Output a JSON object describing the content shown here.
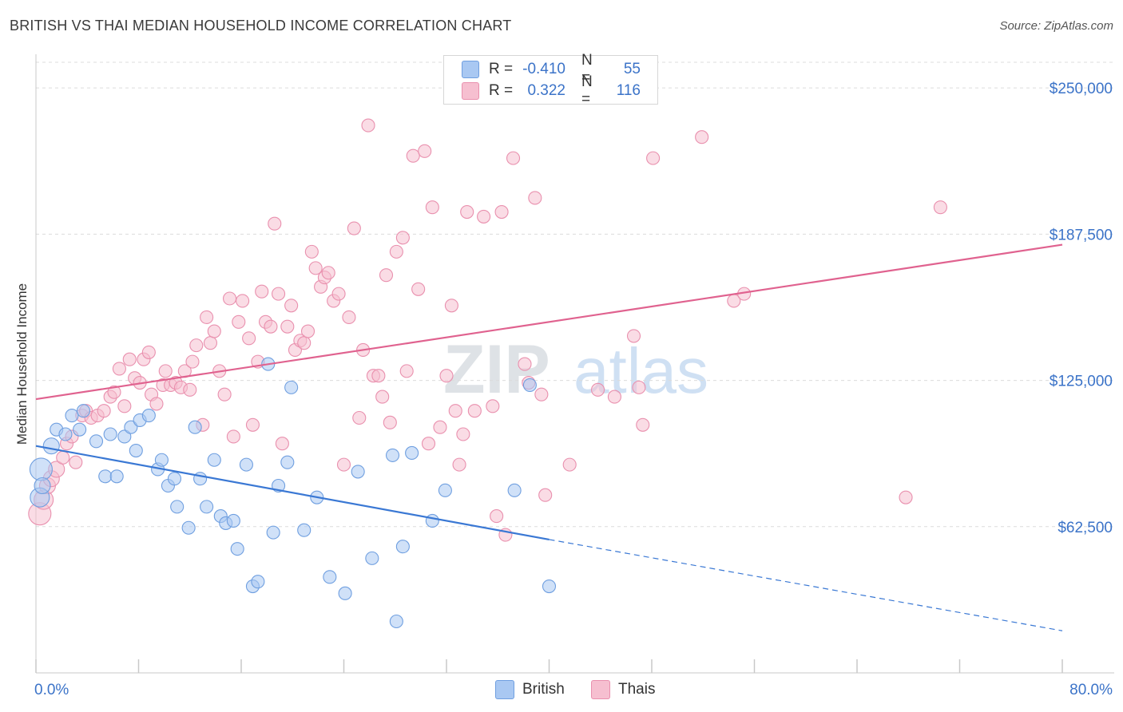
{
  "title": "BRITISH VS THAI MEDIAN HOUSEHOLD INCOME CORRELATION CHART",
  "source": "Source: ZipAtlas.com",
  "watermark": {
    "zip": "ZIP",
    "atlas": "atlas"
  },
  "legend": {
    "r_label": "R =",
    "n_label": "N =",
    "rows": [
      {
        "series": "British",
        "r": "-0.410",
        "n": "55",
        "color": "#a9c8f2",
        "edge": "#6f9fe0"
      },
      {
        "series": "Thais",
        "r": "0.322",
        "n": "116",
        "color": "#f6bfd0",
        "edge": "#e990ae"
      }
    ]
  },
  "bottom_legend": [
    "British",
    "Thais"
  ],
  "chart_data": {
    "type": "scatter",
    "title": "BRITISH VS THAI MEDIAN HOUSEHOLD INCOME CORRELATION CHART",
    "xlabel": "",
    "ylabel": "Median Household Income",
    "xlim": [
      0,
      80
    ],
    "ylim": [
      0,
      262000
    ],
    "x_tick_labels": [
      "0.0%",
      "80.0%"
    ],
    "y_ticks": [
      62500,
      125000,
      187500,
      250000
    ],
    "y_tick_labels": [
      "$62,500",
      "$125,000",
      "$187,500",
      "$250,000"
    ],
    "grid": true,
    "legend_position": "top-center",
    "series": [
      {
        "name": "British",
        "color": "#3a78d4",
        "fill": "#a9c8f2",
        "trend": {
          "x0": 0,
          "y0": 97000,
          "x1": 40,
          "y1": 57000,
          "dash_to_x": 80,
          "dash_to_y": 18000
        },
        "points": [
          [
            0.4,
            87000,
            14
          ],
          [
            0.3,
            75000,
            12
          ],
          [
            1.2,
            97000,
            10
          ],
          [
            1.6,
            104000,
            8
          ],
          [
            2.3,
            102000,
            8
          ],
          [
            2.8,
            110000,
            8
          ],
          [
            3.4,
            104000,
            8
          ],
          [
            3.7,
            112000,
            8
          ],
          [
            4.7,
            99000,
            8
          ],
          [
            5.4,
            84000,
            8
          ],
          [
            5.8,
            102000,
            8
          ],
          [
            6.3,
            84000,
            8
          ],
          [
            6.9,
            101000,
            8
          ],
          [
            7.4,
            105000,
            8
          ],
          [
            7.8,
            95000,
            8
          ],
          [
            8.1,
            108000,
            8
          ],
          [
            8.8,
            110000,
            8
          ],
          [
            9.5,
            87000,
            8
          ],
          [
            9.8,
            91000,
            8
          ],
          [
            10.3,
            80000,
            8
          ],
          [
            10.8,
            83000,
            8
          ],
          [
            11.0,
            71000,
            8
          ],
          [
            11.9,
            62000,
            8
          ],
          [
            12.4,
            105000,
            8
          ],
          [
            12.8,
            83000,
            8
          ],
          [
            13.3,
            71000,
            8
          ],
          [
            13.9,
            91000,
            8
          ],
          [
            14.4,
            67000,
            8
          ],
          [
            14.8,
            64000,
            8
          ],
          [
            15.4,
            65000,
            8
          ],
          [
            15.7,
            53000,
            8
          ],
          [
            16.4,
            89000,
            8
          ],
          [
            16.9,
            37000,
            8
          ],
          [
            17.3,
            39000,
            8
          ],
          [
            18.1,
            132000,
            8
          ],
          [
            18.5,
            60000,
            8
          ],
          [
            18.9,
            80000,
            8
          ],
          [
            19.6,
            90000,
            8
          ],
          [
            19.9,
            122000,
            8
          ],
          [
            20.9,
            61000,
            8
          ],
          [
            21.9,
            75000,
            8
          ],
          [
            22.9,
            41000,
            8
          ],
          [
            24.1,
            34000,
            8
          ],
          [
            25.1,
            86000,
            8
          ],
          [
            26.2,
            49000,
            8
          ],
          [
            27.8,
            93000,
            8
          ],
          [
            28.1,
            22000,
            8
          ],
          [
            28.6,
            54000,
            8
          ],
          [
            29.3,
            94000,
            8
          ],
          [
            30.9,
            65000,
            8
          ],
          [
            31.9,
            78000,
            8
          ],
          [
            37.3,
            78000,
            8
          ],
          [
            38.5,
            123000,
            8
          ],
          [
            40.0,
            37000,
            8
          ],
          [
            0.5,
            80000,
            10
          ]
        ]
      },
      {
        "name": "Thais",
        "color": "#e0628f",
        "fill": "#f6bfd0",
        "trend": {
          "x0": 0,
          "y0": 117000,
          "x1": 80,
          "y1": 183000
        },
        "points": [
          [
            0.3,
            68000,
            14
          ],
          [
            0.6,
            74000,
            12
          ],
          [
            0.9,
            80000,
            10
          ],
          [
            1.2,
            83000,
            10
          ],
          [
            1.6,
            87000,
            10
          ],
          [
            2.1,
            92000,
            8
          ],
          [
            2.4,
            98000,
            8
          ],
          [
            2.8,
            101000,
            8
          ],
          [
            3.1,
            90000,
            8
          ],
          [
            3.6,
            110000,
            8
          ],
          [
            3.9,
            112000,
            8
          ],
          [
            4.3,
            109000,
            8
          ],
          [
            4.8,
            110000,
            8
          ],
          [
            5.3,
            112000,
            8
          ],
          [
            5.8,
            118000,
            8
          ],
          [
            6.1,
            120000,
            8
          ],
          [
            6.5,
            130000,
            8
          ],
          [
            6.9,
            114000,
            8
          ],
          [
            7.3,
            134000,
            8
          ],
          [
            7.7,
            126000,
            8
          ],
          [
            8.1,
            124000,
            8
          ],
          [
            8.4,
            134000,
            8
          ],
          [
            8.8,
            137000,
            8
          ],
          [
            9.0,
            119000,
            8
          ],
          [
            9.4,
            115000,
            8
          ],
          [
            9.9,
            123000,
            8
          ],
          [
            10.1,
            129000,
            8
          ],
          [
            10.5,
            123000,
            8
          ],
          [
            10.9,
            124000,
            8
          ],
          [
            11.3,
            122000,
            8
          ],
          [
            11.6,
            129000,
            8
          ],
          [
            12.0,
            121000,
            8
          ],
          [
            12.2,
            133000,
            8
          ],
          [
            12.5,
            140000,
            8
          ],
          [
            13.0,
            106000,
            8
          ],
          [
            13.3,
            152000,
            8
          ],
          [
            13.6,
            141000,
            8
          ],
          [
            13.9,
            146000,
            8
          ],
          [
            14.3,
            129000,
            8
          ],
          [
            14.7,
            119000,
            8
          ],
          [
            15.1,
            160000,
            8
          ],
          [
            15.4,
            101000,
            8
          ],
          [
            15.8,
            150000,
            8
          ],
          [
            16.1,
            159000,
            8
          ],
          [
            16.6,
            143000,
            8
          ],
          [
            16.9,
            106000,
            8
          ],
          [
            17.3,
            133000,
            8
          ],
          [
            17.6,
            163000,
            8
          ],
          [
            17.9,
            150000,
            8
          ],
          [
            18.3,
            148000,
            8
          ],
          [
            18.6,
            192000,
            8
          ],
          [
            18.9,
            162000,
            8
          ],
          [
            19.2,
            98000,
            8
          ],
          [
            19.6,
            148000,
            8
          ],
          [
            19.9,
            157000,
            8
          ],
          [
            20.2,
            138000,
            8
          ],
          [
            20.6,
            142000,
            8
          ],
          [
            20.9,
            141000,
            8
          ],
          [
            21.2,
            146000,
            8
          ],
          [
            21.5,
            180000,
            8
          ],
          [
            21.8,
            173000,
            8
          ],
          [
            22.2,
            165000,
            8
          ],
          [
            22.5,
            169000,
            8
          ],
          [
            22.8,
            171000,
            8
          ],
          [
            23.2,
            159000,
            8
          ],
          [
            23.6,
            162000,
            8
          ],
          [
            24.0,
            89000,
            8
          ],
          [
            24.4,
            152000,
            8
          ],
          [
            24.8,
            190000,
            8
          ],
          [
            25.2,
            109000,
            8
          ],
          [
            25.5,
            138000,
            8
          ],
          [
            25.9,
            234000,
            8
          ],
          [
            26.3,
            127000,
            8
          ],
          [
            26.7,
            127000,
            8
          ],
          [
            27.0,
            118000,
            8
          ],
          [
            27.3,
            170000,
            8
          ],
          [
            27.6,
            107000,
            8
          ],
          [
            28.1,
            180000,
            8
          ],
          [
            28.6,
            186000,
            8
          ],
          [
            28.9,
            129000,
            8
          ],
          [
            29.4,
            221000,
            8
          ],
          [
            29.8,
            164000,
            8
          ],
          [
            30.3,
            223000,
            8
          ],
          [
            30.6,
            98000,
            8
          ],
          [
            30.9,
            199000,
            8
          ],
          [
            31.5,
            105000,
            8
          ],
          [
            32.0,
            127000,
            8
          ],
          [
            32.4,
            157000,
            8
          ],
          [
            32.7,
            112000,
            8
          ],
          [
            33.0,
            89000,
            8
          ],
          [
            33.3,
            102000,
            8
          ],
          [
            33.6,
            197000,
            8
          ],
          [
            34.2,
            112000,
            8
          ],
          [
            34.9,
            195000,
            8
          ],
          [
            35.6,
            114000,
            8
          ],
          [
            35.9,
            67000,
            8
          ],
          [
            36.3,
            197000,
            8
          ],
          [
            36.6,
            59000,
            8
          ],
          [
            37.2,
            220000,
            8
          ],
          [
            38.1,
            132000,
            8
          ],
          [
            38.4,
            124000,
            8
          ],
          [
            38.9,
            203000,
            8
          ],
          [
            39.4,
            119000,
            8
          ],
          [
            39.7,
            76000,
            8
          ],
          [
            41.6,
            89000,
            8
          ],
          [
            43.8,
            121000,
            8
          ],
          [
            45.1,
            118000,
            8
          ],
          [
            46.6,
            144000,
            8
          ],
          [
            47.0,
            122000,
            8
          ],
          [
            47.3,
            106000,
            8
          ],
          [
            48.1,
            220000,
            8
          ],
          [
            51.9,
            229000,
            8
          ],
          [
            54.4,
            159000,
            8
          ],
          [
            55.2,
            162000,
            8
          ],
          [
            67.8,
            75000,
            8
          ],
          [
            70.5,
            199000,
            8
          ]
        ]
      }
    ]
  }
}
